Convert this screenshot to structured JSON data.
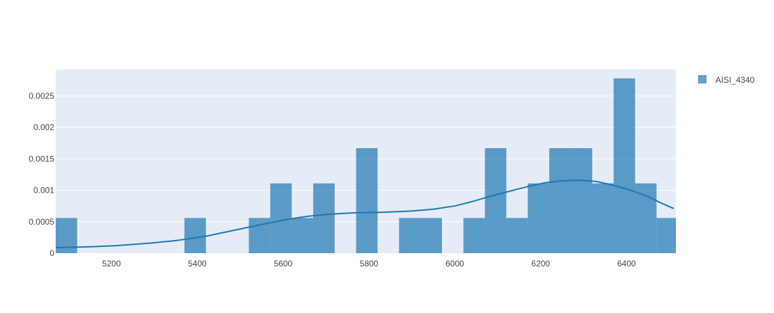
{
  "chart_data": {
    "type": "bar",
    "overlay": "line",
    "xlim": [
      5070,
      6515
    ],
    "ylim": [
      0,
      0.00292
    ],
    "x_ticks": [
      5200,
      5400,
      5600,
      5800,
      6000,
      6200,
      6400
    ],
    "x_tick_labels": [
      "5200",
      "5400",
      "5600",
      "5800",
      "6000",
      "6200",
      "6400"
    ],
    "y_ticks": [
      0,
      0.0005,
      0.001,
      0.0015,
      0.002,
      0.0025
    ],
    "y_tick_labels": [
      "0",
      "0.0005",
      "0.001",
      "0.0015",
      "0.002",
      "0.0025"
    ],
    "grid": true,
    "legend_position": "top-right",
    "series": [
      {
        "name": "AISI_4340",
        "type": "histogram",
        "color": "#1f77b4",
        "opacity": 0.7,
        "bins": [
          {
            "x0": 5070,
            "x1": 5120,
            "value": 0.00056
          },
          {
            "x0": 5370,
            "x1": 5420,
            "value": 0.00056
          },
          {
            "x0": 5520,
            "x1": 5570,
            "value": 0.00056
          },
          {
            "x0": 5570,
            "x1": 5620,
            "value": 0.00111
          },
          {
            "x0": 5620,
            "x1": 5670,
            "value": 0.00056
          },
          {
            "x0": 5670,
            "x1": 5720,
            "value": 0.00111
          },
          {
            "x0": 5770,
            "x1": 5820,
            "value": 0.00167
          },
          {
            "x0": 5870,
            "x1": 5920,
            "value": 0.00056
          },
          {
            "x0": 5920,
            "x1": 5970,
            "value": 0.00056
          },
          {
            "x0": 6020,
            "x1": 6070,
            "value": 0.00056
          },
          {
            "x0": 6070,
            "x1": 6120,
            "value": 0.00167
          },
          {
            "x0": 6120,
            "x1": 6170,
            "value": 0.00056
          },
          {
            "x0": 6170,
            "x1": 6220,
            "value": 0.00111
          },
          {
            "x0": 6220,
            "x1": 6270,
            "value": 0.00167
          },
          {
            "x0": 6270,
            "x1": 6320,
            "value": 0.00167
          },
          {
            "x0": 6320,
            "x1": 6370,
            "value": 0.00111
          },
          {
            "x0": 6370,
            "x1": 6420,
            "value": 0.00278
          },
          {
            "x0": 6420,
            "x1": 6470,
            "value": 0.00111
          },
          {
            "x0": 6470,
            "x1": 6520,
            "value": 0.00056
          }
        ]
      },
      {
        "type": "line",
        "color": "#1f77b4",
        "points": [
          [
            5070,
            9e-05
          ],
          [
            5140,
            0.0001
          ],
          [
            5210,
            0.00012
          ],
          [
            5290,
            0.00016
          ],
          [
            5350,
            0.0002
          ],
          [
            5420,
            0.00027
          ],
          [
            5490,
            0.00037
          ],
          [
            5560,
            0.00047
          ],
          [
            5620,
            0.00055
          ],
          [
            5660,
            0.00059
          ],
          [
            5710,
            0.00062
          ],
          [
            5760,
            0.00064
          ],
          [
            5830,
            0.00065
          ],
          [
            5900,
            0.00067
          ],
          [
            5950,
            0.0007
          ],
          [
            6000,
            0.00075
          ],
          [
            6040,
            0.00082
          ],
          [
            6080,
            0.0009
          ],
          [
            6130,
            0.00099
          ],
          [
            6170,
            0.00106
          ],
          [
            6210,
            0.00112
          ],
          [
            6250,
            0.00115
          ],
          [
            6290,
            0.00116
          ],
          [
            6330,
            0.00114
          ],
          [
            6370,
            0.00108
          ],
          [
            6410,
            0.001
          ],
          [
            6450,
            0.0009
          ],
          [
            6480,
            0.0008
          ],
          [
            6510,
            0.00071
          ]
        ]
      }
    ]
  }
}
